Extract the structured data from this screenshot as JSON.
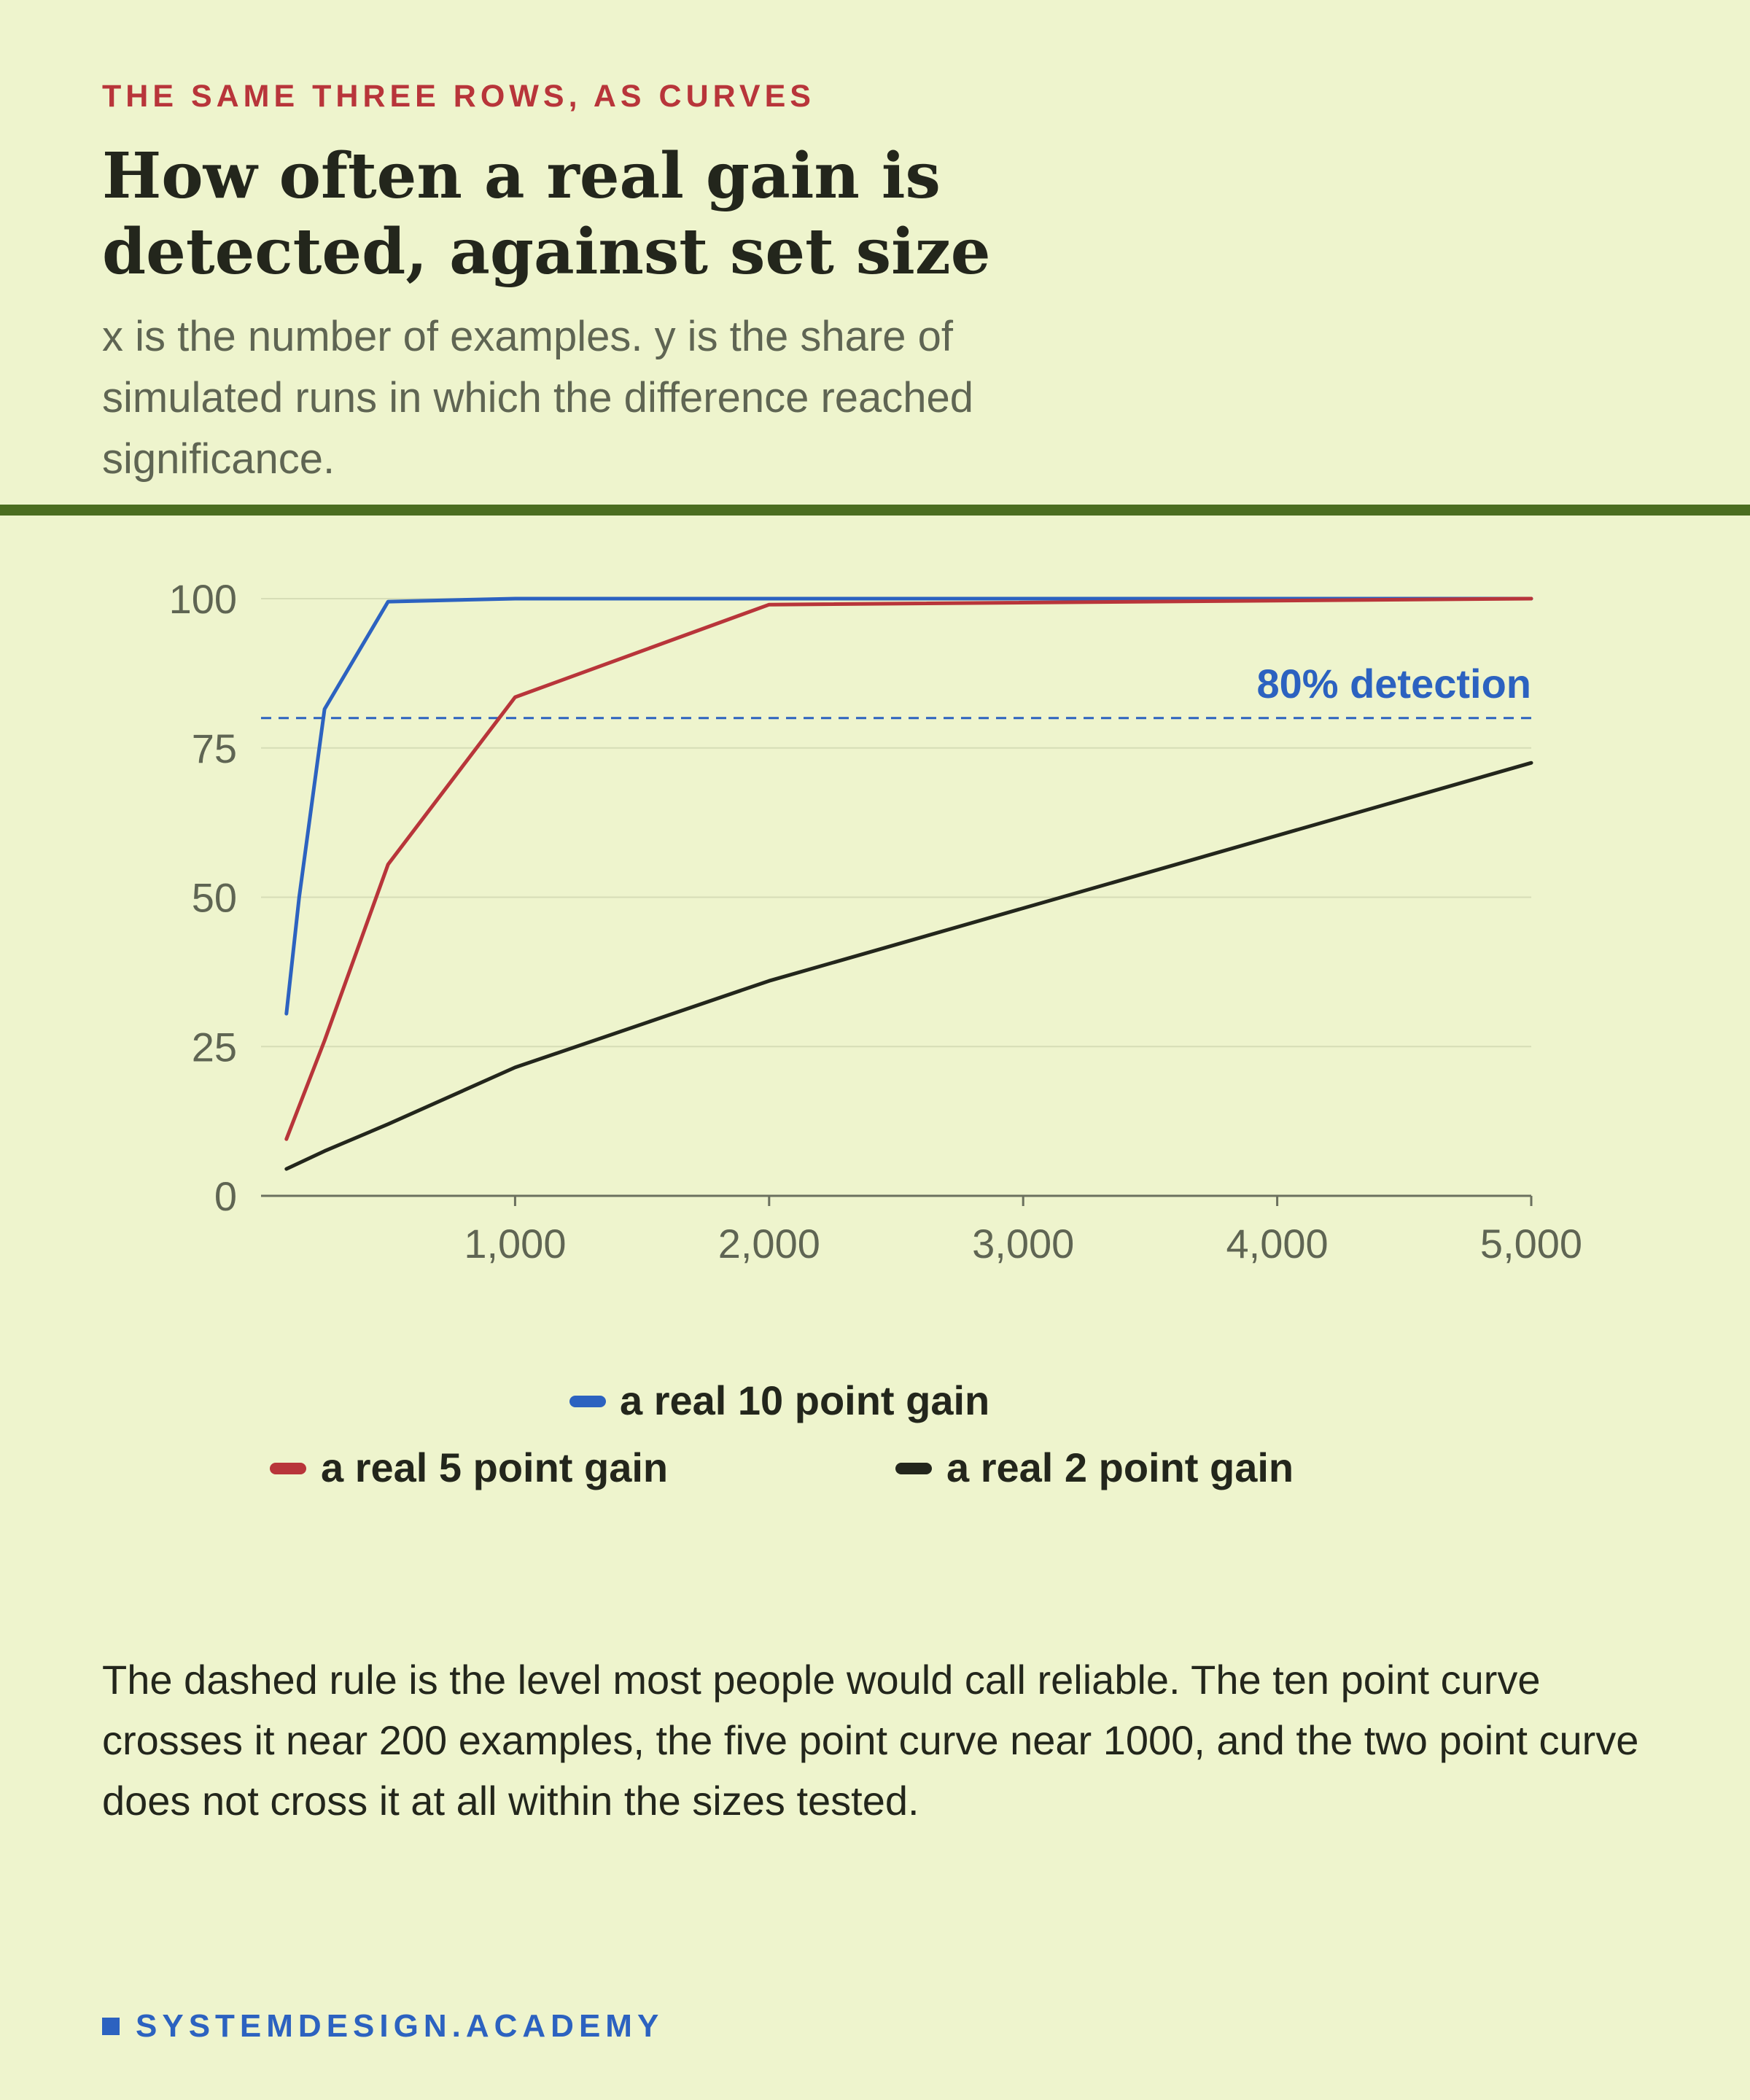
{
  "kicker": "THE SAME THREE ROWS, AS CURVES",
  "title": "How often a real gain is detected, against set size",
  "subtitle": "x is the number of examples. y is the share of simulated runs in which the difference reached significance.",
  "note": "The dashed rule is the level most people would call reliable. The ten point curve crosses it near 200 examples, the five point curve near 1000, and the two point curve does not cross it at all within the sizes tested.",
  "footer": "SYSTEMDESIGN.ACADEMY",
  "chart_data": {
    "type": "line",
    "title": "",
    "xlabel": "",
    "ylabel": "",
    "xlim": [
      0,
      5000
    ],
    "ylim": [
      0,
      100
    ],
    "x_ticks": [
      1000,
      2000,
      3000,
      4000,
      5000
    ],
    "x_tick_labels": [
      "1,000",
      "2,000",
      "3,000",
      "4,000",
      "5,000"
    ],
    "y_ticks": [
      0,
      25,
      50,
      75,
      100
    ],
    "y_tick_labels": [
      "0",
      "25",
      "50",
      "75",
      "100"
    ],
    "grid": true,
    "reference_line": {
      "y": 80,
      "label": "80% detection",
      "color": "#2c62c0",
      "style": "dashed"
    },
    "series": [
      {
        "name": "a real 10 point gain",
        "color": "#2c62c0",
        "points": [
          [
            100,
            30.5
          ],
          [
            150,
            50
          ],
          [
            250,
            81.5
          ],
          [
            500,
            99.5
          ],
          [
            1000,
            100
          ],
          [
            2000,
            100
          ],
          [
            5000,
            100
          ]
        ]
      },
      {
        "name": "a real 5 point gain",
        "color": "#b8353a",
        "points": [
          [
            100,
            9.5
          ],
          [
            250,
            26
          ],
          [
            500,
            55.5
          ],
          [
            1000,
            83.5
          ],
          [
            2000,
            99
          ],
          [
            5000,
            100
          ]
        ]
      },
      {
        "name": "a real 2 point gain",
        "color": "#23261c",
        "points": [
          [
            100,
            4.5
          ],
          [
            250,
            7.5
          ],
          [
            500,
            12
          ],
          [
            1000,
            21.5
          ],
          [
            2000,
            36
          ],
          [
            5000,
            72.5
          ]
        ]
      }
    ],
    "legend": {
      "placement": "bottom"
    }
  }
}
